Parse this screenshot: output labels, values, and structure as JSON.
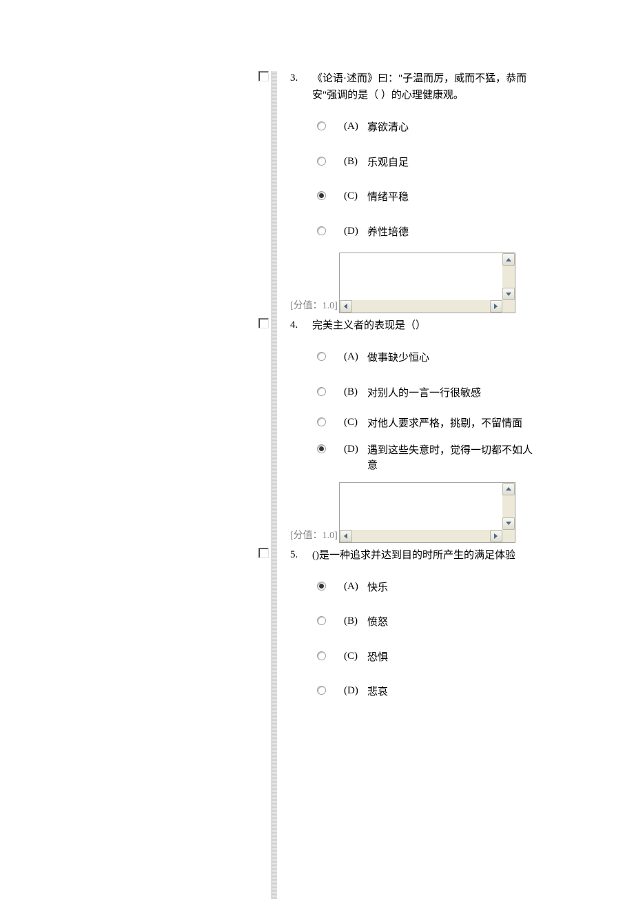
{
  "colors": {
    "text": "#000000",
    "muted": "#808080",
    "background": "#ffffff",
    "divider": "#d0d0d0",
    "input_border": "#a0a0a0",
    "scrollbar_track": "#ece9d8",
    "scrollbar_arrow": "#4a6a8a"
  },
  "typography": {
    "font_family": "SimSun",
    "body_fontsize": 15,
    "score_fontsize": 14
  },
  "score_prefix": "[分值：",
  "score_suffix": "]",
  "questions": [
    {
      "number": "3.",
      "text": "《论语·述而》曰：\"子温而厉，威而不猛，恭而安\"强调的是（  ）的心理健康观。",
      "options": [
        {
          "letter": "(A)",
          "text": "寡欲清心",
          "selected": false
        },
        {
          "letter": "(B)",
          "text": "乐观自足",
          "selected": false
        },
        {
          "letter": "(C)",
          "text": "情绪平稳",
          "selected": true
        },
        {
          "letter": "(D)",
          "text": "养性培德",
          "selected": false
        }
      ],
      "score": "1.0",
      "has_scrollbox": true
    },
    {
      "number": "4.",
      "text": "完美主义者的表现是（）",
      "options": [
        {
          "letter": "(A)",
          "text": "做事缺少恒心",
          "selected": false
        },
        {
          "letter": "(B)",
          "text": "对别人的一言一行很敏感",
          "selected": false
        },
        {
          "letter": "(C)",
          "text": "对他人要求严格，挑剔，不留情面",
          "selected": false
        },
        {
          "letter": "(D)",
          "text": "遇到这些失意时，觉得一切都不如人意",
          "selected": true
        }
      ],
      "score": "1.0",
      "has_scrollbox": true
    },
    {
      "number": "5.",
      "text": "()是一种追求并达到目的时所产生的满足体验",
      "options": [
        {
          "letter": "(A)",
          "text": "快乐",
          "selected": true
        },
        {
          "letter": "(B)",
          "text": "愤怒",
          "selected": false
        },
        {
          "letter": "(C)",
          "text": "恐惧",
          "selected": false
        },
        {
          "letter": "(D)",
          "text": "悲哀",
          "selected": false
        }
      ],
      "has_scrollbox": false
    }
  ]
}
